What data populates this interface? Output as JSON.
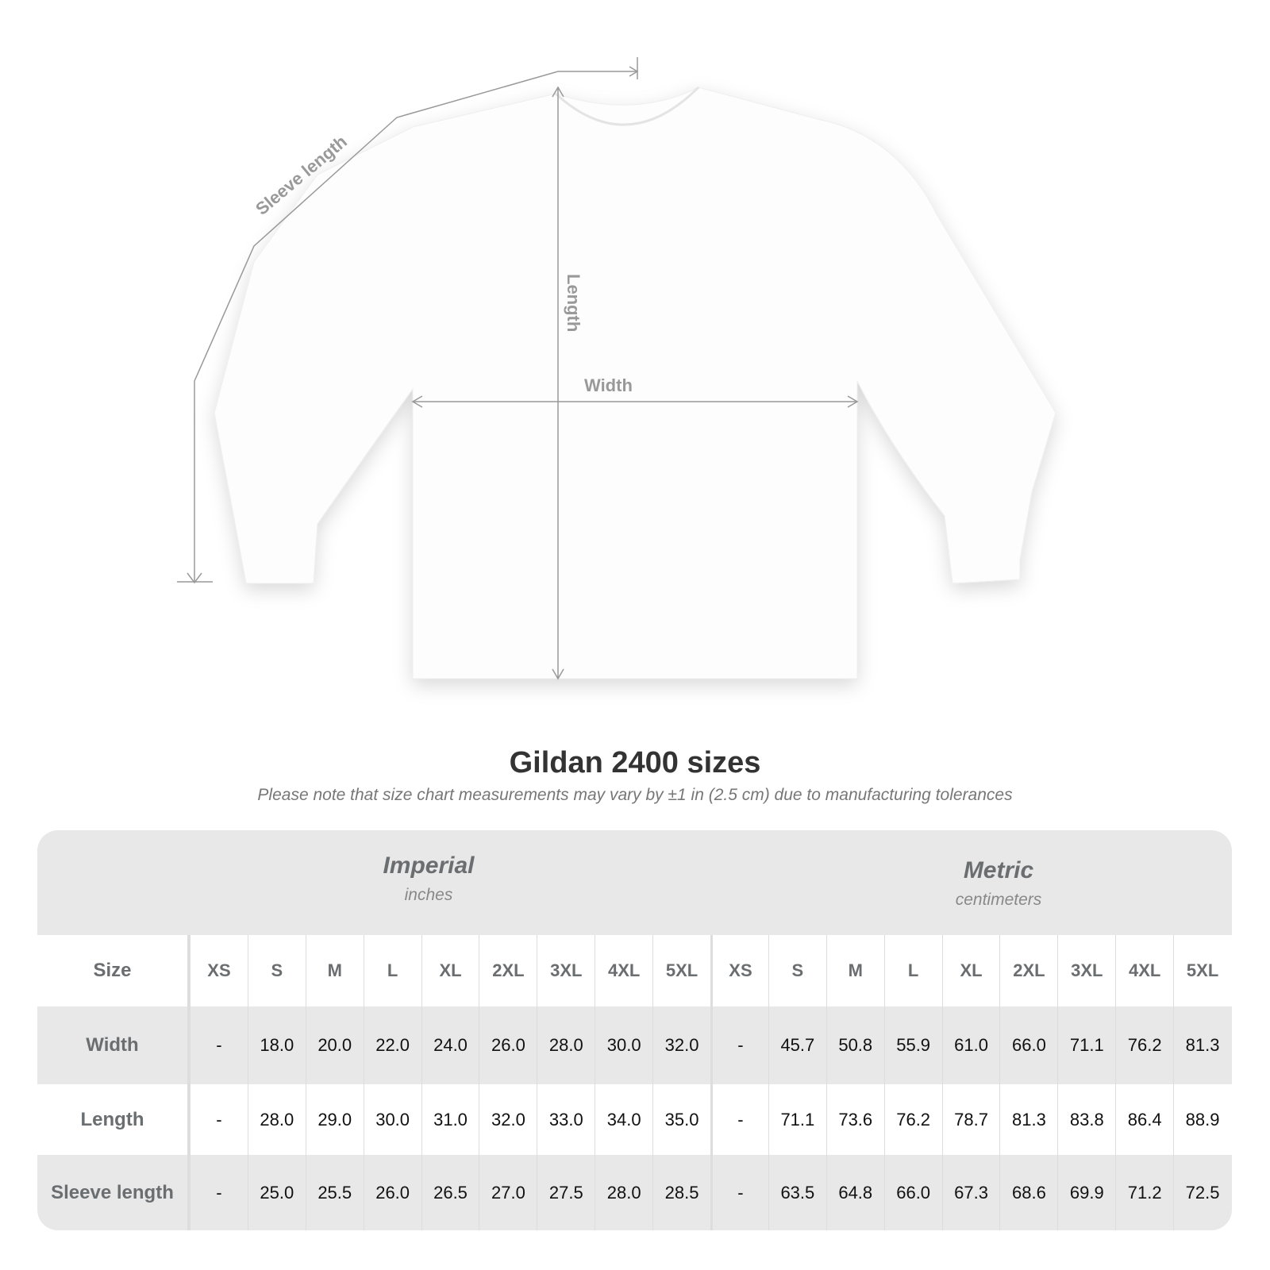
{
  "diagram": {
    "labels": {
      "sleeve": "Sleeve length",
      "length": "Length",
      "width": "Width"
    }
  },
  "title": "Gildan 2400 sizes",
  "note": "Please note that size chart measurements may vary by ±1 in (2.5 cm) due to manufacturing tolerances",
  "imperial": {
    "title": "Imperial",
    "unit": "inches"
  },
  "metric": {
    "title": "Metric",
    "unit": "centimeters"
  },
  "size_label": "Size",
  "sizes": [
    "XS",
    "S",
    "M",
    "L",
    "XL",
    "2XL",
    "3XL",
    "4XL",
    "5XL"
  ],
  "rows": [
    {
      "label": "Width",
      "imperial": [
        "-",
        "18.0",
        "20.0",
        "22.0",
        "24.0",
        "26.0",
        "28.0",
        "30.0",
        "32.0"
      ],
      "metric": [
        "-",
        "45.7",
        "50.8",
        "55.9",
        "61.0",
        "66.0",
        "71.1",
        "76.2",
        "81.3"
      ]
    },
    {
      "label": "Length",
      "imperial": [
        "-",
        "28.0",
        "29.0",
        "30.0",
        "31.0",
        "32.0",
        "33.0",
        "34.0",
        "35.0"
      ],
      "metric": [
        "-",
        "71.1",
        "73.6",
        "76.2",
        "78.7",
        "81.3",
        "83.8",
        "86.4",
        "88.9"
      ]
    },
    {
      "label": "Sleeve length",
      "imperial": [
        "-",
        "25.0",
        "25.5",
        "26.0",
        "26.5",
        "27.0",
        "27.5",
        "28.0",
        "28.5"
      ],
      "metric": [
        "-",
        "63.5",
        "64.8",
        "66.0",
        "67.3",
        "68.6",
        "69.9",
        "71.2",
        "72.5"
      ]
    }
  ]
}
